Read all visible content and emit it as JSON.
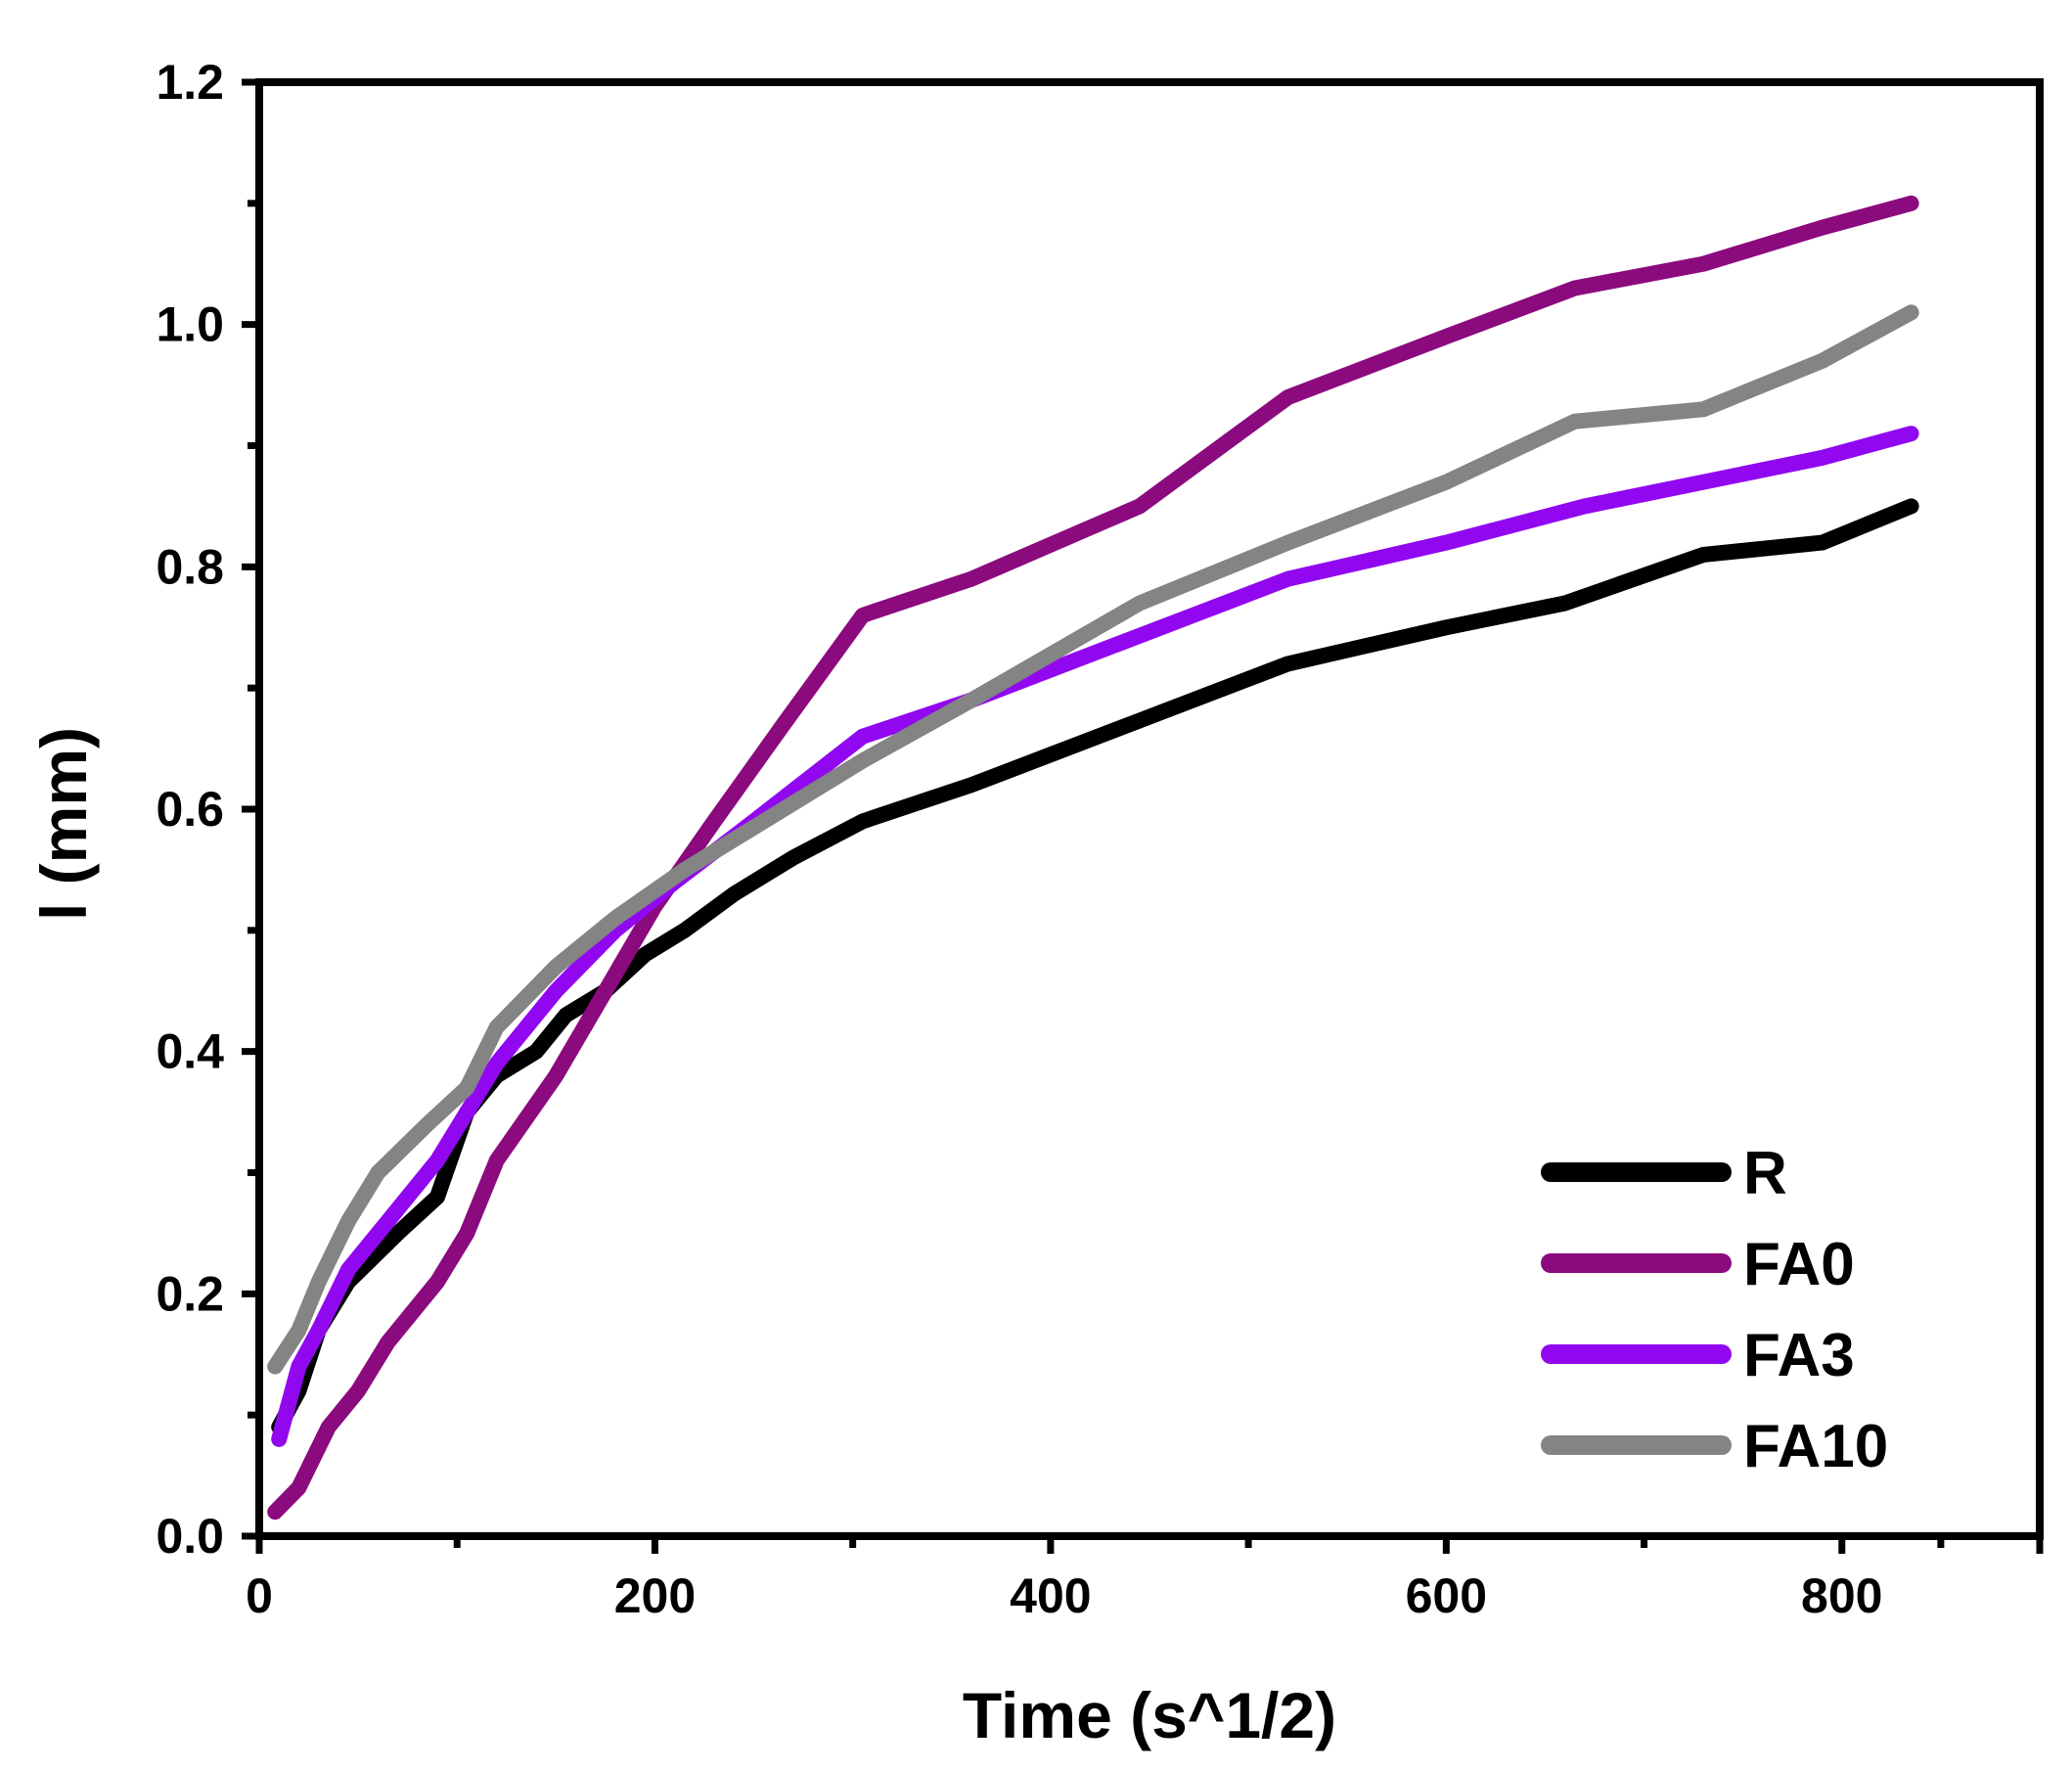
{
  "chart_data": {
    "type": "line",
    "title": "",
    "xlabel": "Time (s^1/2)",
    "ylabel": "l (mm)",
    "xlim": [
      0,
      900
    ],
    "ylim": [
      0,
      1.2
    ],
    "xticks": [
      0,
      200,
      400,
      600,
      800
    ],
    "yticks": [
      0.0,
      0.2,
      0.4,
      0.6,
      0.8,
      1.0,
      1.2
    ],
    "xtick_labels": [
      "0",
      "200",
      "400",
      "600",
      "800"
    ],
    "ytick_labels": [
      "0.0",
      "0.2",
      "0.4",
      "0.6",
      "0.8",
      "1.0",
      "1.2"
    ],
    "legend_position": "bottom-right",
    "series": [
      {
        "name": "R",
        "color": "#000000",
        "x": [
          10,
          20,
          30,
          45,
          70,
          90,
          105,
          120,
          140,
          155,
          175,
          195,
          215,
          240,
          270,
          305,
          360,
          440,
          520,
          600,
          660,
          730,
          790,
          835
        ],
        "y": [
          0.09,
          0.12,
          0.17,
          0.21,
          0.25,
          0.28,
          0.35,
          0.38,
          0.4,
          0.43,
          0.45,
          0.48,
          0.5,
          0.53,
          0.56,
          0.59,
          0.62,
          0.67,
          0.72,
          0.75,
          0.77,
          0.81,
          0.82,
          0.85
        ]
      },
      {
        "name": "FA0",
        "color": "#8b0a7e",
        "x": [
          8,
          20,
          35,
          50,
          65,
          90,
          105,
          120,
          150,
          175,
          200,
          230,
          265,
          305,
          360,
          445,
          520,
          600,
          665,
          730,
          790,
          835
        ],
        "y": [
          0.02,
          0.04,
          0.09,
          0.12,
          0.16,
          0.21,
          0.25,
          0.31,
          0.38,
          0.45,
          0.52,
          0.59,
          0.67,
          0.76,
          0.79,
          0.85,
          0.94,
          0.99,
          1.03,
          1.05,
          1.08,
          1.1
        ]
      },
      {
        "name": "FA3",
        "color": "#9108f0",
        "x": [
          10,
          20,
          30,
          45,
          70,
          90,
          105,
          120,
          150,
          180,
          210,
          250,
          305,
          360,
          440,
          520,
          600,
          670,
          730,
          790,
          835
        ],
        "y": [
          0.08,
          0.14,
          0.17,
          0.22,
          0.27,
          0.31,
          0.35,
          0.39,
          0.45,
          0.5,
          0.54,
          0.59,
          0.66,
          0.69,
          0.74,
          0.79,
          0.82,
          0.85,
          0.87,
          0.89,
          0.91
        ]
      },
      {
        "name": "FA10",
        "color": "#848484",
        "x": [
          8,
          20,
          30,
          45,
          60,
          85,
          105,
          120,
          150,
          180,
          215,
          255,
          305,
          360,
          445,
          520,
          600,
          665,
          730,
          790,
          835
        ],
        "y": [
          0.14,
          0.17,
          0.21,
          0.26,
          0.3,
          0.34,
          0.37,
          0.42,
          0.47,
          0.51,
          0.55,
          0.59,
          0.64,
          0.69,
          0.77,
          0.82,
          0.87,
          0.92,
          0.93,
          0.97,
          1.01
        ]
      }
    ]
  }
}
